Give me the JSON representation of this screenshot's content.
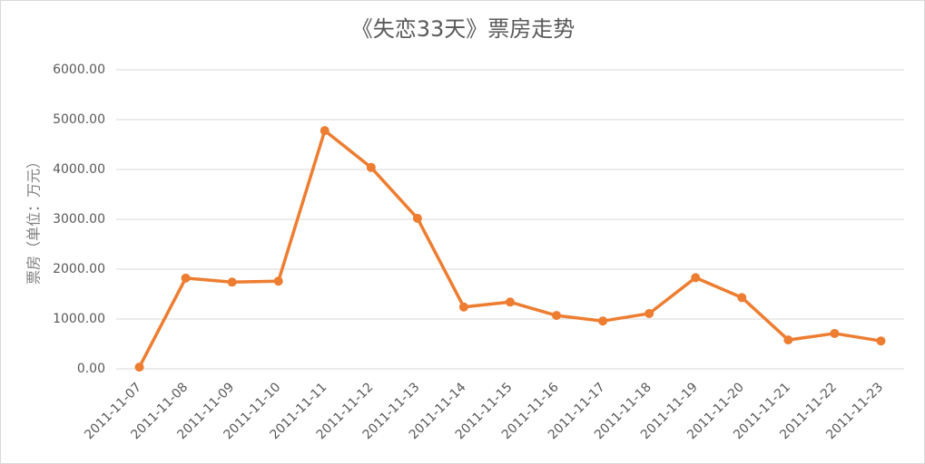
{
  "chart_data": {
    "type": "line",
    "title": "《失恋33天》票房走势",
    "y_label": "票房（单位：万元）",
    "categories": [
      "2011-11-07",
      "2011-11-08",
      "2011-11-09",
      "2011-11-10",
      "2011-11-11",
      "2011-11-12",
      "2011-11-13",
      "2011-11-14",
      "2011-11-15",
      "2011-11-16",
      "2011-11-17",
      "2011-11-18",
      "2011-11-19",
      "2011-11-20",
      "2011-11-21",
      "2011-11-22",
      "2011-11-23"
    ],
    "values": [
      35,
      1820,
      1740,
      1760,
      4780,
      4040,
      3020,
      1240,
      1340,
      1070,
      960,
      1110,
      1830,
      1430,
      580,
      710,
      560
    ],
    "color": "#ed7d31",
    "ylim": [
      0,
      6000
    ],
    "yticks": [
      {
        "value": 0,
        "label": "0.00"
      },
      {
        "value": 1000,
        "label": "1000.00"
      },
      {
        "value": 2000,
        "label": "2000.00"
      },
      {
        "value": 3000,
        "label": "3000.00"
      },
      {
        "value": 4000,
        "label": "4000.00"
      },
      {
        "value": 5000,
        "label": "5000.00"
      },
      {
        "value": 6000,
        "label": "6000.00"
      }
    ],
    "grid": true
  }
}
